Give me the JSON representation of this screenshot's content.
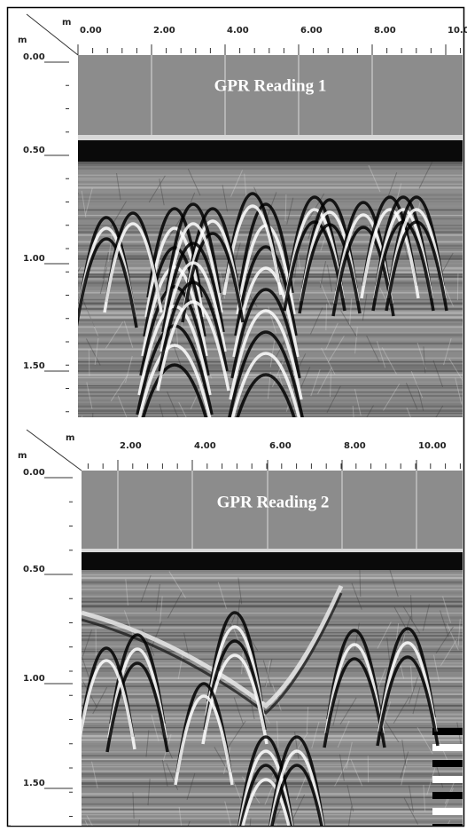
{
  "panels": [
    {
      "title": "GPR Reading 1",
      "x_unit": "m",
      "y_unit": "m",
      "x_ticks": [
        "0.00",
        "2.00",
        "4.00",
        "6.00",
        "8.00",
        "10.00"
      ],
      "y_ticks": [
        "0.00",
        "0.50",
        "1.00",
        "1.50"
      ]
    },
    {
      "title": "GPR Reading 2",
      "x_unit": "m",
      "y_unit": "m",
      "x_ticks": [
        "2.00",
        "4.00",
        "6.00",
        "8.00",
        "10.00"
      ],
      "y_ticks": [
        "0.00",
        "0.50",
        "1.00",
        "1.50"
      ]
    }
  ]
}
